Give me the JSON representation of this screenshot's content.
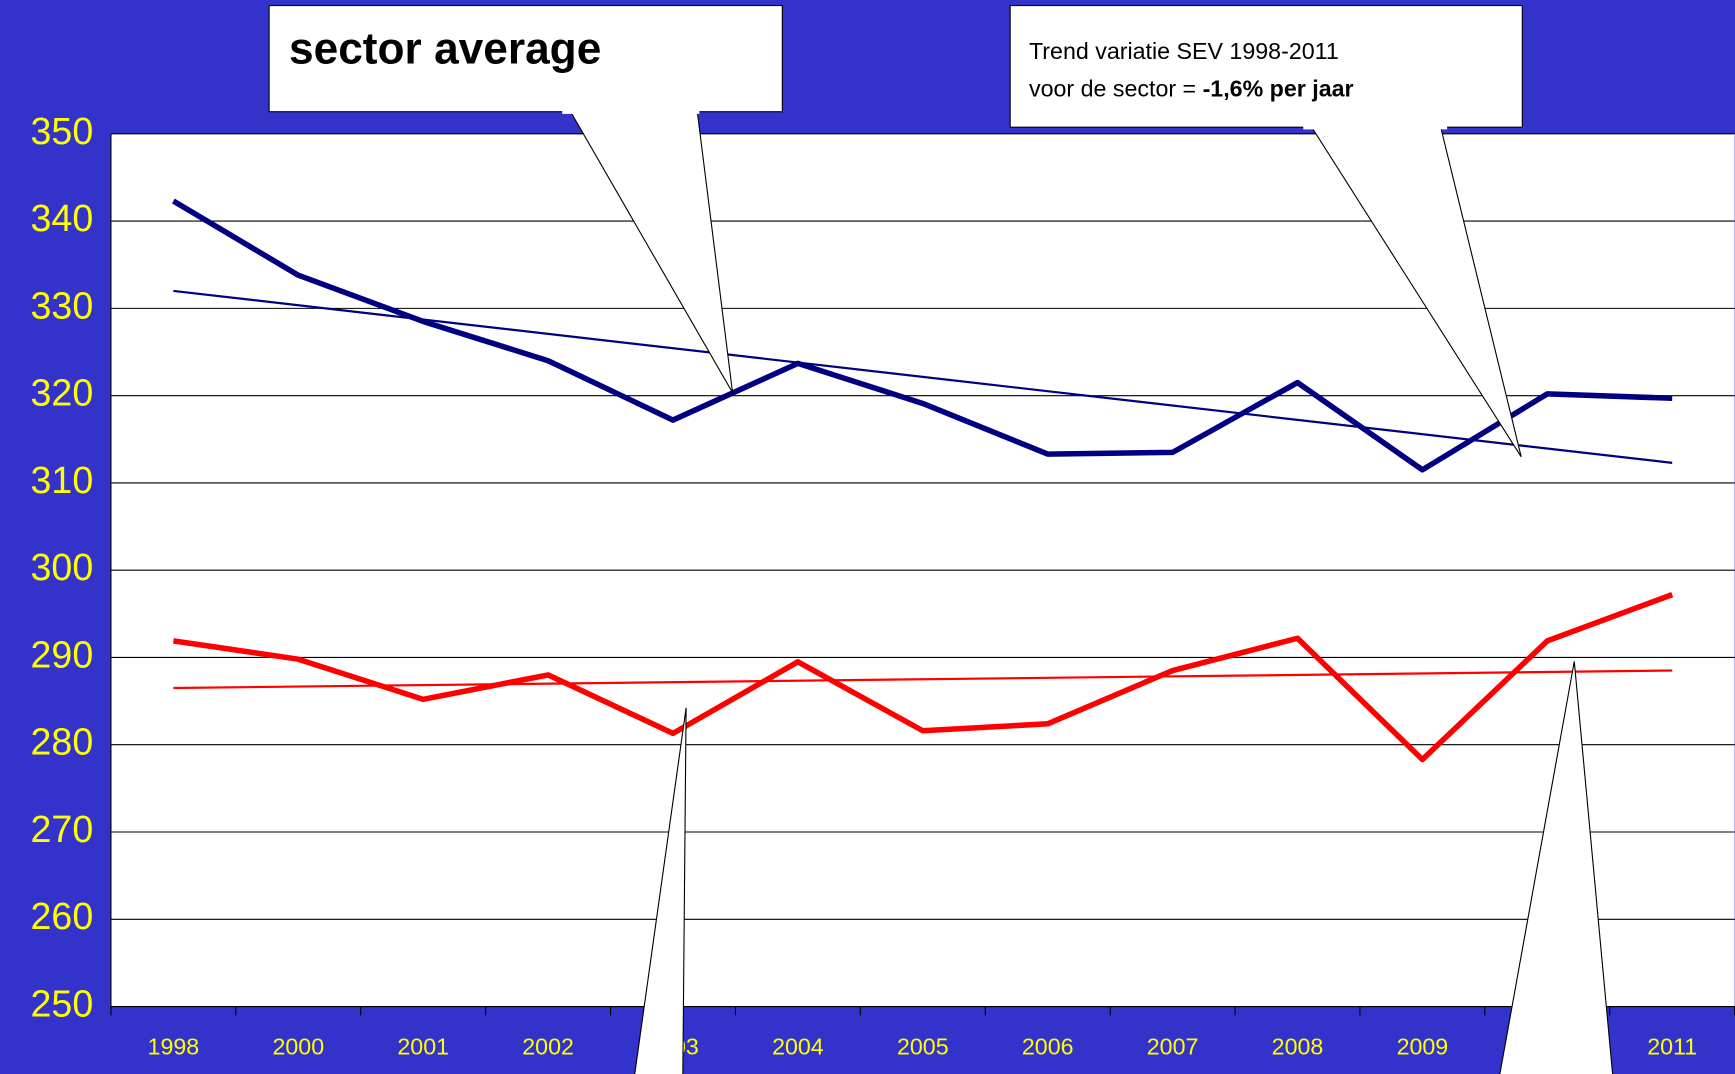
{
  "chart_data": {
    "type": "line",
    "categories": [
      "1998",
      "2000",
      "2001",
      "2002",
      "2003",
      "2004",
      "2005",
      "2006",
      "2007",
      "2008",
      "2009",
      null,
      "2011"
    ],
    "series": [
      {
        "color": "#000080",
        "values": [
          342.3,
          333.8,
          328.5,
          324,
          317.2,
          323.7,
          319.1,
          313.3,
          313.5,
          321.5,
          311.5,
          320.2,
          319.7
        ]
      },
      {
        "color": "#ff0000",
        "values": [
          291.9,
          289.8,
          285.2,
          288,
          281.3,
          289.5,
          281.6,
          282.4,
          288.5,
          292.2,
          278.3,
          291.9,
          297.2
        ]
      }
    ],
    "trendlines": [
      {
        "color": "#000080",
        "values": [
          332,
          312.3
        ]
      },
      {
        "color": "#ff0000",
        "values": [
          286.5,
          288.5
        ]
      }
    ],
    "ylim": [
      250,
      350
    ],
    "yticks": [
      250,
      260,
      270,
      280,
      290,
      300,
      310,
      320,
      330,
      340,
      350
    ],
    "grid": true,
    "annotations": {
      "sector_label": "sector average",
      "trend_line1": "Trend variatie SEV 1998-2011",
      "trend_line2": "voor de sector = ",
      "trend_bold": "-1,6% per jaar"
    }
  }
}
